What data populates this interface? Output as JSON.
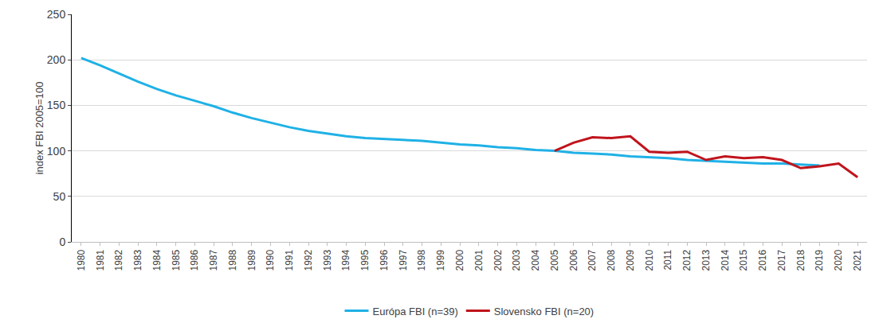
{
  "chart_data": {
    "type": "line",
    "y_label": "index FBI 2005=100",
    "categories": [
      "1980",
      "1981",
      "1982",
      "1983",
      "1984",
      "1985",
      "1986",
      "1987",
      "1988",
      "1989",
      "1990",
      "1991",
      "1992",
      "1993",
      "1994",
      "1995",
      "1996",
      "1997",
      "1998",
      "1999",
      "2000",
      "2001",
      "2002",
      "2003",
      "2004",
      "2005",
      "2006",
      "2007",
      "2008",
      "2009",
      "2010",
      "2011",
      "2012",
      "2013",
      "2014",
      "2015",
      "2016",
      "2017",
      "2018",
      "2019",
      "2020",
      "2021"
    ],
    "series": [
      {
        "name": "Európa FBI (n=39)",
        "color": "#1fb1e6",
        "values": [
          202,
          194,
          185,
          176,
          168,
          161,
          155,
          149,
          142,
          136,
          131,
          126,
          122,
          119,
          116,
          114,
          113,
          112,
          111,
          109,
          107,
          106,
          104,
          103,
          101,
          100,
          98,
          97,
          96,
          94,
          93,
          92,
          90,
          89,
          88,
          87,
          86,
          86,
          85,
          84,
          null,
          null
        ]
      },
      {
        "name": "Slovensko FBI (n=20)",
        "color": "#c0141c",
        "values": [
          null,
          null,
          null,
          null,
          null,
          null,
          null,
          null,
          null,
          null,
          null,
          null,
          null,
          null,
          null,
          null,
          null,
          null,
          null,
          null,
          null,
          null,
          null,
          null,
          null,
          100,
          109,
          115,
          114,
          116,
          99,
          98,
          99,
          90,
          94,
          92,
          93,
          90,
          81,
          83,
          86,
          71
        ]
      }
    ],
    "ylim": [
      0,
      250
    ],
    "yticks": [
      0,
      50,
      100,
      150,
      200,
      250
    ],
    "grid": true,
    "legend": "bottom"
  }
}
